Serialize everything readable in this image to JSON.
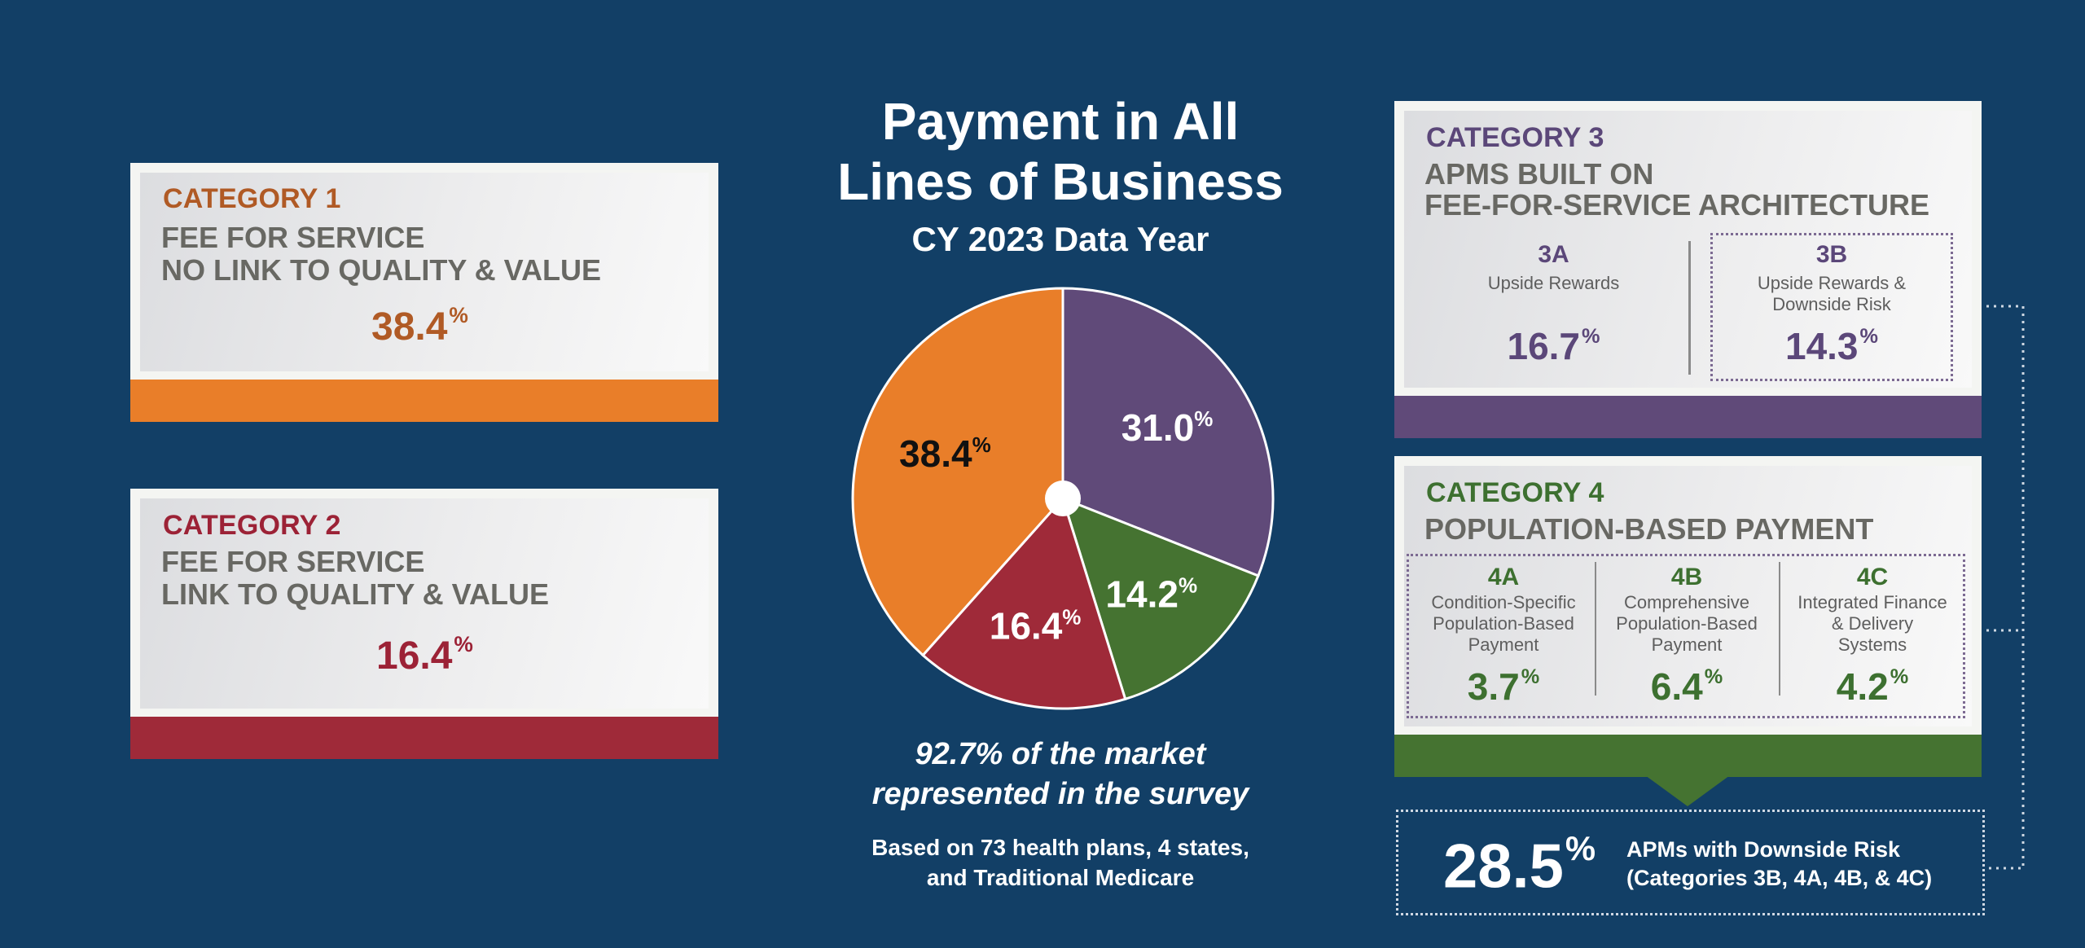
{
  "colors": {
    "background": "#123f66",
    "cat1": "#e97e29",
    "cat1_text": "#b05a25",
    "cat2": "#9f2a39",
    "cat2_text": "#9c2236",
    "cat3": "#604a79",
    "cat3_text": "#5b4779",
    "cat4": "#457331",
    "cat4_text": "#3d7030"
  },
  "center": {
    "title_line1": "Payment in All",
    "title_line2": "Lines of Business",
    "subtitle": "CY 2023 Data Year",
    "market_line1": "92.7% of the market",
    "market_line2": "represented in the survey",
    "basis_line1": "Based on 73 health plans, 4 states,",
    "basis_line2": "and Traditional Medicare"
  },
  "category1": {
    "label": "CATEGORY 1",
    "title_line1": "FEE FOR SERVICE",
    "title_line2": "NO LINK TO QUALITY & VALUE",
    "value": "38.4",
    "unit": "%"
  },
  "category2": {
    "label": "CATEGORY 2",
    "title_line1": "FEE FOR SERVICE",
    "title_line2": "LINK TO QUALITY & VALUE",
    "value": "16.4",
    "unit": "%"
  },
  "category3": {
    "label": "CATEGORY 3",
    "title_line1": "APMS BUILT ON",
    "title_line2": "FEE-FOR-SERVICE ARCHITECTURE",
    "sub": [
      {
        "code": "3A",
        "desc_line1": "Upside Rewards",
        "desc_line2": "",
        "value": "16.7",
        "unit": "%"
      },
      {
        "code": "3B",
        "desc_line1": "Upside Rewards &",
        "desc_line2": "Downside Risk",
        "value": "14.3",
        "unit": "%"
      }
    ]
  },
  "category4": {
    "label": "CATEGORY 4",
    "title_line1": "POPULATION-BASED PAYMENT",
    "sub": [
      {
        "code": "4A",
        "desc_line1": "Condition-Specific",
        "desc_line2": "Population-Based",
        "desc_line3": "Payment",
        "value": "3.7",
        "unit": "%"
      },
      {
        "code": "4B",
        "desc_line1": "Comprehensive",
        "desc_line2": "Population-Based",
        "desc_line3": "Payment",
        "value": "6.4",
        "unit": "%"
      },
      {
        "code": "4C",
        "desc_line1": "Integrated Finance",
        "desc_line2": "& Delivery",
        "desc_line3": "Systems",
        "value": "4.2",
        "unit": "%"
      }
    ]
  },
  "downside": {
    "value": "28.5",
    "unit": "%",
    "line1": "APMs with Downside Risk",
    "line2": "(Categories 3B, 4A, 4B, & 4C)"
  },
  "chart_data": {
    "type": "pie",
    "title": "Payment in All Lines of Business",
    "subtitle": "CY 2023 Data Year",
    "categories": [
      "Category 3",
      "Category 4",
      "Category 2",
      "Category 1"
    ],
    "values": [
      31.0,
      14.2,
      16.4,
      38.4
    ],
    "labels": [
      "31.0",
      "14.2",
      "16.4",
      "38.4"
    ],
    "unit": "%",
    "colors": [
      "#604a79",
      "#457331",
      "#9f2a39",
      "#e97e29"
    ],
    "label_colors": [
      "#ffffff",
      "#ffffff",
      "#ffffff",
      "#111111"
    ],
    "start": "12 o'clock",
    "direction": "clockwise"
  }
}
